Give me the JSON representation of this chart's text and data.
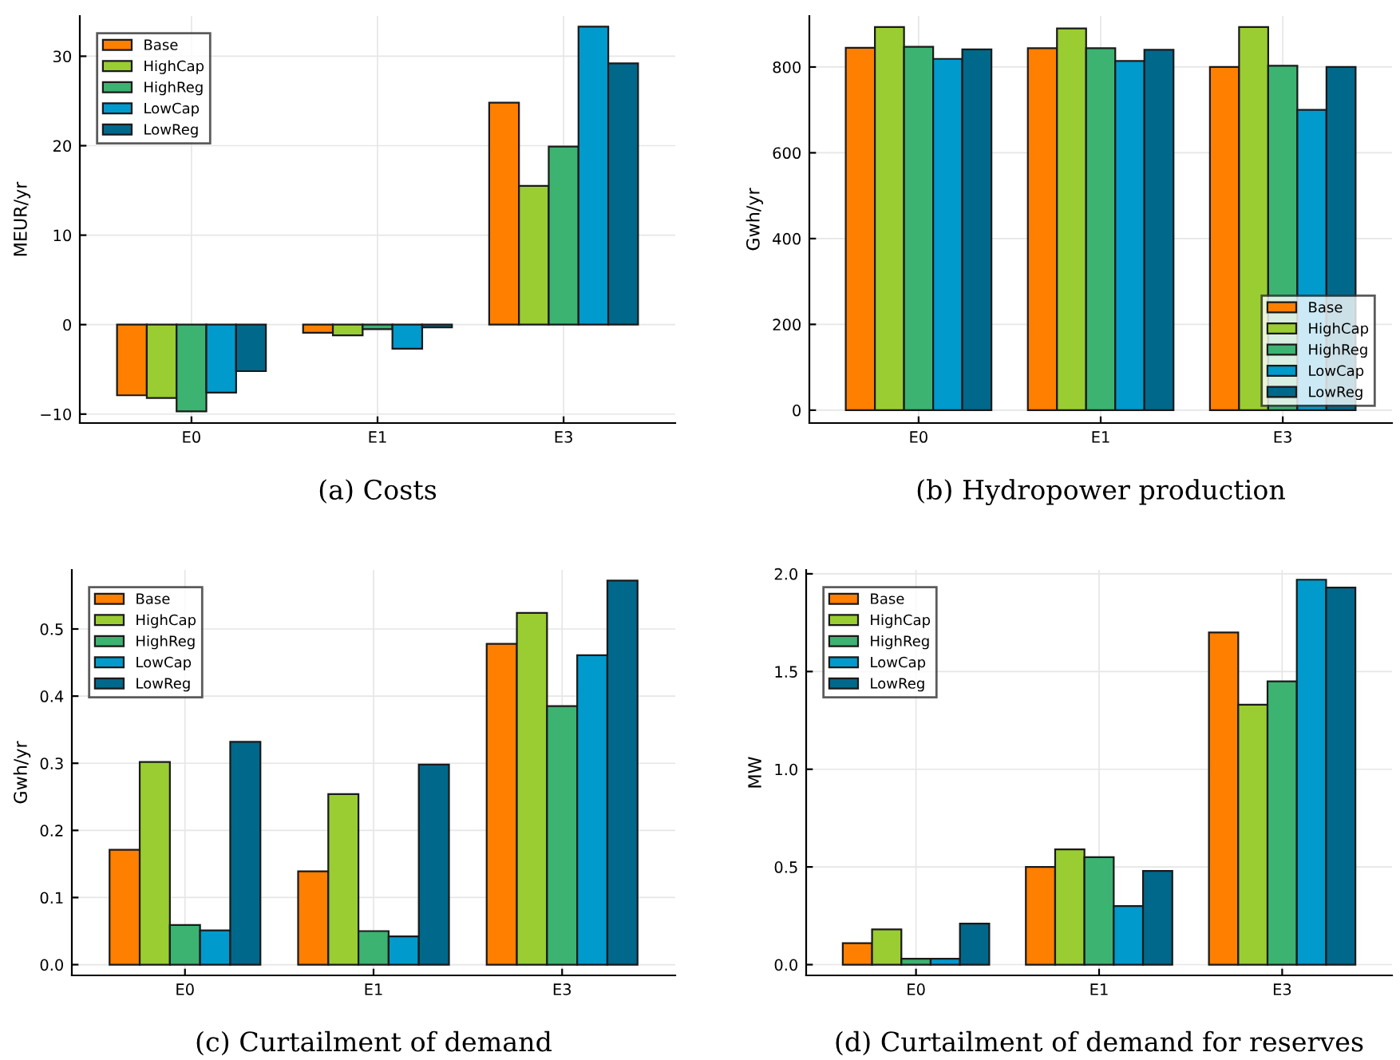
{
  "chart_data": [
    {
      "type": "bar",
      "title": "(a) Costs",
      "ylabel": "MEUR/yr",
      "categories": [
        "E0",
        "E1",
        "E3"
      ],
      "ylim": [
        -11,
        34.5
      ],
      "yticks": [
        {
          "value": -10,
          "label": "−10"
        },
        0,
        10,
        20,
        30
      ],
      "grid": true,
      "legend": "top left",
      "series": [
        {
          "name": "Base",
          "color": "#ff7f00",
          "values": [
            -7.9,
            -0.9,
            24.8
          ]
        },
        {
          "name": "HighCap",
          "color": "#9acd32",
          "values": [
            -8.2,
            -1.2,
            15.5
          ]
        },
        {
          "name": "HighReg",
          "color": "#3cb371",
          "values": [
            -9.7,
            -0.5,
            19.9
          ]
        },
        {
          "name": "LowCap",
          "color": "#009acd",
          "values": [
            -7.6,
            -2.7,
            33.3
          ]
        },
        {
          "name": "LowReg",
          "color": "#00688b",
          "values": [
            -5.2,
            -0.3,
            29.2
          ]
        }
      ]
    },
    {
      "type": "bar",
      "title": "(b) Hydropower production",
      "ylabel": "Gwh/yr",
      "categories": [
        "E0",
        "E1",
        "E3"
      ],
      "ylim": [
        -30,
        919
      ],
      "yticks": [
        0,
        200,
        400,
        600,
        800
      ],
      "grid": true,
      "legend": "bottom right",
      "series": [
        {
          "name": "Base",
          "color": "#ff7f00",
          "values": [
            845,
            844,
            800
          ]
        },
        {
          "name": "HighCap",
          "color": "#9acd32",
          "values": [
            893,
            890,
            893
          ]
        },
        {
          "name": "HighReg",
          "color": "#3cb371",
          "values": [
            847,
            844,
            803
          ]
        },
        {
          "name": "LowCap",
          "color": "#009acd",
          "values": [
            819,
            814,
            700
          ]
        },
        {
          "name": "LowReg",
          "color": "#00688b",
          "values": [
            841,
            840,
            800
          ]
        }
      ]
    },
    {
      "type": "bar",
      "title": "(c) Curtailment of demand",
      "ylabel": "Gwh/yr",
      "categories": [
        "E0",
        "E1",
        "E3"
      ],
      "ylim": [
        -0.016,
        0.588
      ],
      "yticks": [
        {
          "value": 0,
          "label": "0.0"
        },
        0.1,
        0.2,
        0.3,
        0.4,
        0.5
      ],
      "grid": true,
      "legend": "top left",
      "series": [
        {
          "name": "Base",
          "color": "#ff7f00",
          "values": [
            0.171,
            0.139,
            0.478
          ]
        },
        {
          "name": "HighCap",
          "color": "#9acd32",
          "values": [
            0.302,
            0.254,
            0.524
          ]
        },
        {
          "name": "HighReg",
          "color": "#3cb371",
          "values": [
            0.059,
            0.05,
            0.385
          ]
        },
        {
          "name": "LowCap",
          "color": "#009acd",
          "values": [
            0.051,
            0.042,
            0.461
          ]
        },
        {
          "name": "LowReg",
          "color": "#00688b",
          "values": [
            0.332,
            0.298,
            0.572
          ]
        }
      ]
    },
    {
      "type": "bar",
      "title": "(d) Curtailment of demand for reserves",
      "ylabel": "MW",
      "categories": [
        "E0",
        "E1",
        "E3"
      ],
      "ylim": [
        -0.055,
        2.02
      ],
      "yticks": [
        {
          "value": 0,
          "label": "0.0"
        },
        0.5,
        {
          "value": 1,
          "label": "1.0"
        },
        1.5,
        {
          "value": 2,
          "label": "2.0"
        }
      ],
      "grid": true,
      "legend": "top left",
      "series": [
        {
          "name": "Base",
          "color": "#ff7f00",
          "values": [
            0.11,
            0.5,
            1.7
          ]
        },
        {
          "name": "HighCap",
          "color": "#9acd32",
          "values": [
            0.18,
            0.59,
            1.33
          ]
        },
        {
          "name": "HighReg",
          "color": "#3cb371",
          "values": [
            0.03,
            0.55,
            1.45
          ]
        },
        {
          "name": "LowCap",
          "color": "#009acd",
          "values": [
            0.03,
            0.3,
            1.97
          ]
        },
        {
          "name": "LowReg",
          "color": "#00688b",
          "values": [
            0.21,
            0.48,
            1.93
          ]
        }
      ]
    }
  ]
}
